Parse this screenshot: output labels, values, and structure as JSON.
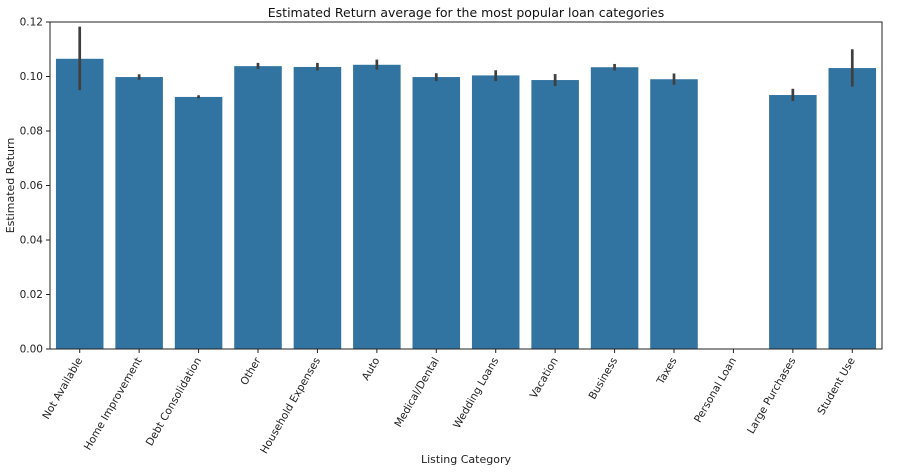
{
  "chart_data": {
    "type": "bar",
    "title": "Estimated Return average for the most popular loan categories",
    "xlabel": "Listing Category",
    "ylabel": "Estimated Return",
    "ylim": [
      0,
      0.12
    ],
    "yticks": [
      "0.00",
      "0.02",
      "0.04",
      "0.06",
      "0.08",
      "0.10",
      "0.12"
    ],
    "categories": [
      "Not Available",
      "Home Improvement",
      "Debt Consolidation",
      "Other",
      "Household Expenses",
      "Auto",
      "Medical/Dental",
      "Wedding Loans",
      "Vacation",
      "Business",
      "Taxes",
      "Personal Loan",
      "Large Purchases",
      "Student Use"
    ],
    "values": [
      0.1065,
      0.0998,
      0.0925,
      0.1038,
      0.1035,
      0.1043,
      0.0998,
      0.1004,
      0.0987,
      0.1034,
      0.099,
      null,
      0.0932,
      0.1031
    ],
    "error_low": [
      0.095,
      0.0988,
      0.092,
      0.1028,
      0.1022,
      0.1025,
      0.0983,
      0.0983,
      0.0965,
      0.1022,
      0.097,
      null,
      0.091,
      0.0963
    ],
    "error_high": [
      0.1183,
      0.1008,
      0.0931,
      0.105,
      0.105,
      0.1062,
      0.1012,
      0.1023,
      0.1009,
      0.1046,
      0.1011,
      null,
      0.0955,
      0.11
    ],
    "bar_color": "#3274a1",
    "error_color": "#3f3f3f",
    "grid": false,
    "legend": "none"
  }
}
